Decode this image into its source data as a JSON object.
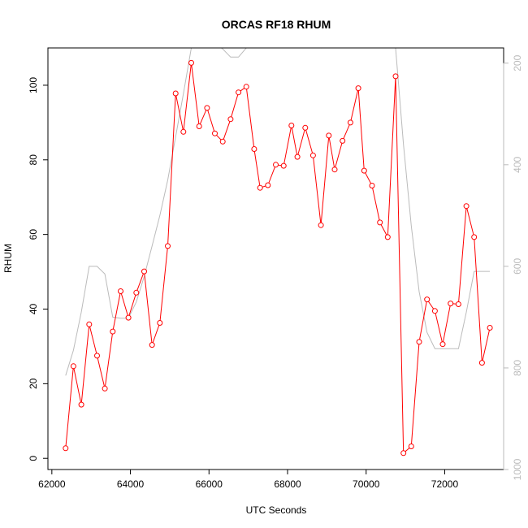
{
  "chart_data": {
    "type": "line",
    "title": "ORCAS RF18 RHUM",
    "xlabel": "UTC Seconds",
    "ylabel": "RHUM",
    "xlim": [
      61900,
      73500
    ],
    "ylim": [
      -3,
      110
    ],
    "x_ticks": [
      "62000",
      "64000",
      "66000",
      "68000",
      "70000",
      "72000"
    ],
    "y_ticks": [
      "0",
      "20",
      "40",
      "60",
      "80",
      "100"
    ],
    "right_axis": {
      "range": [
        1000,
        170
      ],
      "ticks": [
        "200",
        "400",
        "600",
        "800",
        "1000"
      ],
      "color": "#bbbbbb"
    },
    "series": [
      {
        "color": "#ff0000",
        "marker": "open-circle",
        "points": [
          [
            62350,
            2.7
          ],
          [
            62550,
            24.7
          ],
          [
            62750,
            14.4
          ],
          [
            62950,
            35.9
          ],
          [
            63150,
            27.5
          ],
          [
            63350,
            18.7
          ],
          [
            63550,
            34.0
          ],
          [
            63750,
            44.8
          ],
          [
            63950,
            37.7
          ],
          [
            64150,
            44.4
          ],
          [
            64350,
            50.1
          ],
          [
            64550,
            30.4
          ],
          [
            64750,
            36.3
          ],
          [
            64950,
            56.9
          ],
          [
            65150,
            97.8
          ],
          [
            65350,
            87.5
          ],
          [
            65550,
            106.0
          ],
          [
            65750,
            89.0
          ],
          [
            65950,
            93.9
          ],
          [
            66150,
            87.1
          ],
          [
            66350,
            84.9
          ],
          [
            66550,
            90.9
          ],
          [
            66750,
            98.1
          ],
          [
            66950,
            99.6
          ],
          [
            67150,
            82.9
          ],
          [
            67300,
            72.5
          ],
          [
            67500,
            73.2
          ],
          [
            67700,
            78.7
          ],
          [
            67900,
            78.4
          ],
          [
            68100,
            89.2
          ],
          [
            68250,
            80.8
          ],
          [
            68450,
            88.6
          ],
          [
            68650,
            81.2
          ],
          [
            68850,
            62.5
          ],
          [
            69050,
            86.5
          ],
          [
            69200,
            77.4
          ],
          [
            69400,
            85.1
          ],
          [
            69600,
            90.0
          ],
          [
            69800,
            99.2
          ],
          [
            69950,
            77.1
          ],
          [
            70150,
            73.1
          ],
          [
            70350,
            63.2
          ],
          [
            70550,
            59.3
          ],
          [
            70750,
            102.4
          ],
          [
            70950,
            1.4
          ],
          [
            71150,
            3.2
          ],
          [
            71350,
            31.2
          ],
          [
            71550,
            42.6
          ],
          [
            71750,
            39.5
          ],
          [
            71950,
            30.6
          ],
          [
            72150,
            41.5
          ],
          [
            72350,
            41.3
          ],
          [
            72550,
            67.6
          ],
          [
            72750,
            59.3
          ],
          [
            72950,
            25.6
          ],
          [
            73150,
            35.0
          ]
        ]
      },
      {
        "color": "#bbbbbb",
        "axis": "right",
        "points": [
          [
            62350,
            815
          ],
          [
            62550,
            765
          ],
          [
            62750,
            690
          ],
          [
            62950,
            600
          ],
          [
            63150,
            600
          ],
          [
            63350,
            615
          ],
          [
            63550,
            700
          ],
          [
            63750,
            702
          ],
          [
            63950,
            702
          ],
          [
            64150,
            670
          ],
          [
            64350,
            620
          ],
          [
            64550,
            560
          ],
          [
            64750,
            500
          ],
          [
            64950,
            430
          ],
          [
            65150,
            345
          ],
          [
            65350,
            260
          ],
          [
            65550,
            170
          ],
          [
            65750,
            150
          ],
          [
            65950,
            150
          ],
          [
            66150,
            160
          ],
          [
            66350,
            172
          ],
          [
            66550,
            188
          ],
          [
            66750,
            188
          ],
          [
            66950,
            170
          ],
          [
            67150,
            150
          ],
          [
            67300,
            135
          ],
          [
            67500,
            140
          ],
          [
            67700,
            150
          ],
          [
            67900,
            165
          ],
          [
            68100,
            170
          ],
          [
            68250,
            168
          ],
          [
            68450,
            165
          ],
          [
            68650,
            165
          ],
          [
            68850,
            170
          ],
          [
            69050,
            150
          ],
          [
            69200,
            145
          ],
          [
            69400,
            140
          ],
          [
            69600,
            140
          ],
          [
            69800,
            135
          ],
          [
            69950,
            130
          ],
          [
            70150,
            125
          ],
          [
            70350,
            130
          ],
          [
            70550,
            150
          ],
          [
            70750,
            170
          ],
          [
            70950,
            360
          ],
          [
            71150,
            520
          ],
          [
            71350,
            650
          ],
          [
            71550,
            730
          ],
          [
            71750,
            762
          ],
          [
            71950,
            762
          ],
          [
            72150,
            762
          ],
          [
            72350,
            762
          ],
          [
            72550,
            690
          ],
          [
            72750,
            610
          ],
          [
            72950,
            610
          ],
          [
            73150,
            610
          ]
        ]
      }
    ]
  }
}
